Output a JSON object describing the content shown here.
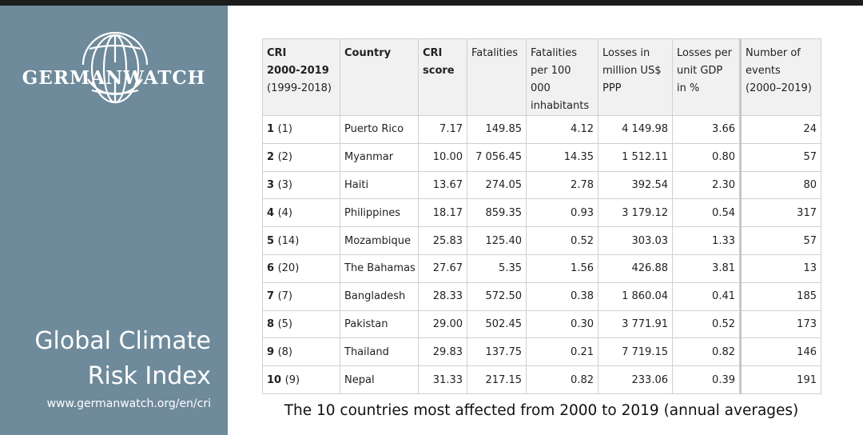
{
  "brand": {
    "logo_text": "GERMANWATCH"
  },
  "sidebar": {
    "title_line1": "Global Climate",
    "title_line2": "Risk Index",
    "url": "www.germanwatch.org/en/cri"
  },
  "table": {
    "headers": {
      "rank_l1": "CRI",
      "rank_l2": "2000-2019",
      "rank_l3": "(1999-2018)",
      "country": "Country",
      "score_l1": "CRI",
      "score_l2": "score",
      "fatalities": "Fatalities",
      "fat_per_l1": "Fatalities",
      "fat_per_l2": "per 100 000",
      "fat_per_l3": "inhabitants",
      "losses_l1": "Losses in",
      "losses_l2": "million US$",
      "losses_l3": "PPP",
      "gdp_l1": "Losses per",
      "gdp_l2": "unit GDP",
      "gdp_l3": "in %",
      "events_l1": "Number of",
      "events_l2": "events",
      "events_l3": "(2000–2019)"
    },
    "rows": [
      {
        "rank": "1",
        "prev": "(1)",
        "country": "Puerto Rico",
        "score": "7.17",
        "fatalities": "149.85",
        "fat_per": "4.12",
        "losses": "4 149.98",
        "gdp": "3.66",
        "events": "24"
      },
      {
        "rank": "2",
        "prev": "(2)",
        "country": "Myanmar",
        "score": "10.00",
        "fatalities": "7 056.45",
        "fat_per": "14.35",
        "losses": "1 512.11",
        "gdp": "0.80",
        "events": "57"
      },
      {
        "rank": "3",
        "prev": "(3)",
        "country": "Haiti",
        "score": "13.67",
        "fatalities": "274.05",
        "fat_per": "2.78",
        "losses": "392.54",
        "gdp": "2.30",
        "events": "80"
      },
      {
        "rank": "4",
        "prev": "(4)",
        "country": "Philippines",
        "score": "18.17",
        "fatalities": "859.35",
        "fat_per": "0.93",
        "losses": "3 179.12",
        "gdp": "0.54",
        "events": "317"
      },
      {
        "rank": "5",
        "prev": "(14)",
        "country": "Mozambique",
        "score": "25.83",
        "fatalities": "125.40",
        "fat_per": "0.52",
        "losses": "303.03",
        "gdp": "1.33",
        "events": "57"
      },
      {
        "rank": "6",
        "prev": "(20)",
        "country": "The Bahamas",
        "score": "27.67",
        "fatalities": "5.35",
        "fat_per": "1.56",
        "losses": "426.88",
        "gdp": "3.81",
        "events": "13"
      },
      {
        "rank": "7",
        "prev": "(7)",
        "country": "Bangladesh",
        "score": "28.33",
        "fatalities": "572.50",
        "fat_per": "0.38",
        "losses": "1 860.04",
        "gdp": "0.41",
        "events": "185"
      },
      {
        "rank": "8",
        "prev": "(5)",
        "country": "Pakistan",
        "score": "29.00",
        "fatalities": "502.45",
        "fat_per": "0.30",
        "losses": "3 771.91",
        "gdp": "0.52",
        "events": "173"
      },
      {
        "rank": "9",
        "prev": "(8)",
        "country": "Thailand",
        "score": "29.83",
        "fatalities": "137.75",
        "fat_per": "0.21",
        "losses": "7 719.15",
        "gdp": "0.82",
        "events": "146"
      },
      {
        "rank": "10",
        "prev": "(9)",
        "country": "Nepal",
        "score": "31.33",
        "fatalities": "217.15",
        "fat_per": "0.82",
        "losses": "233.06",
        "gdp": "0.39",
        "events": "191"
      }
    ]
  },
  "caption": "The 10 countries most affected from 2000 to 2019 (annual averages)",
  "colors": {
    "sidebar": "#6e8a9b",
    "header_bg": "#f1f1f1",
    "grid": "#d0d0d0"
  }
}
